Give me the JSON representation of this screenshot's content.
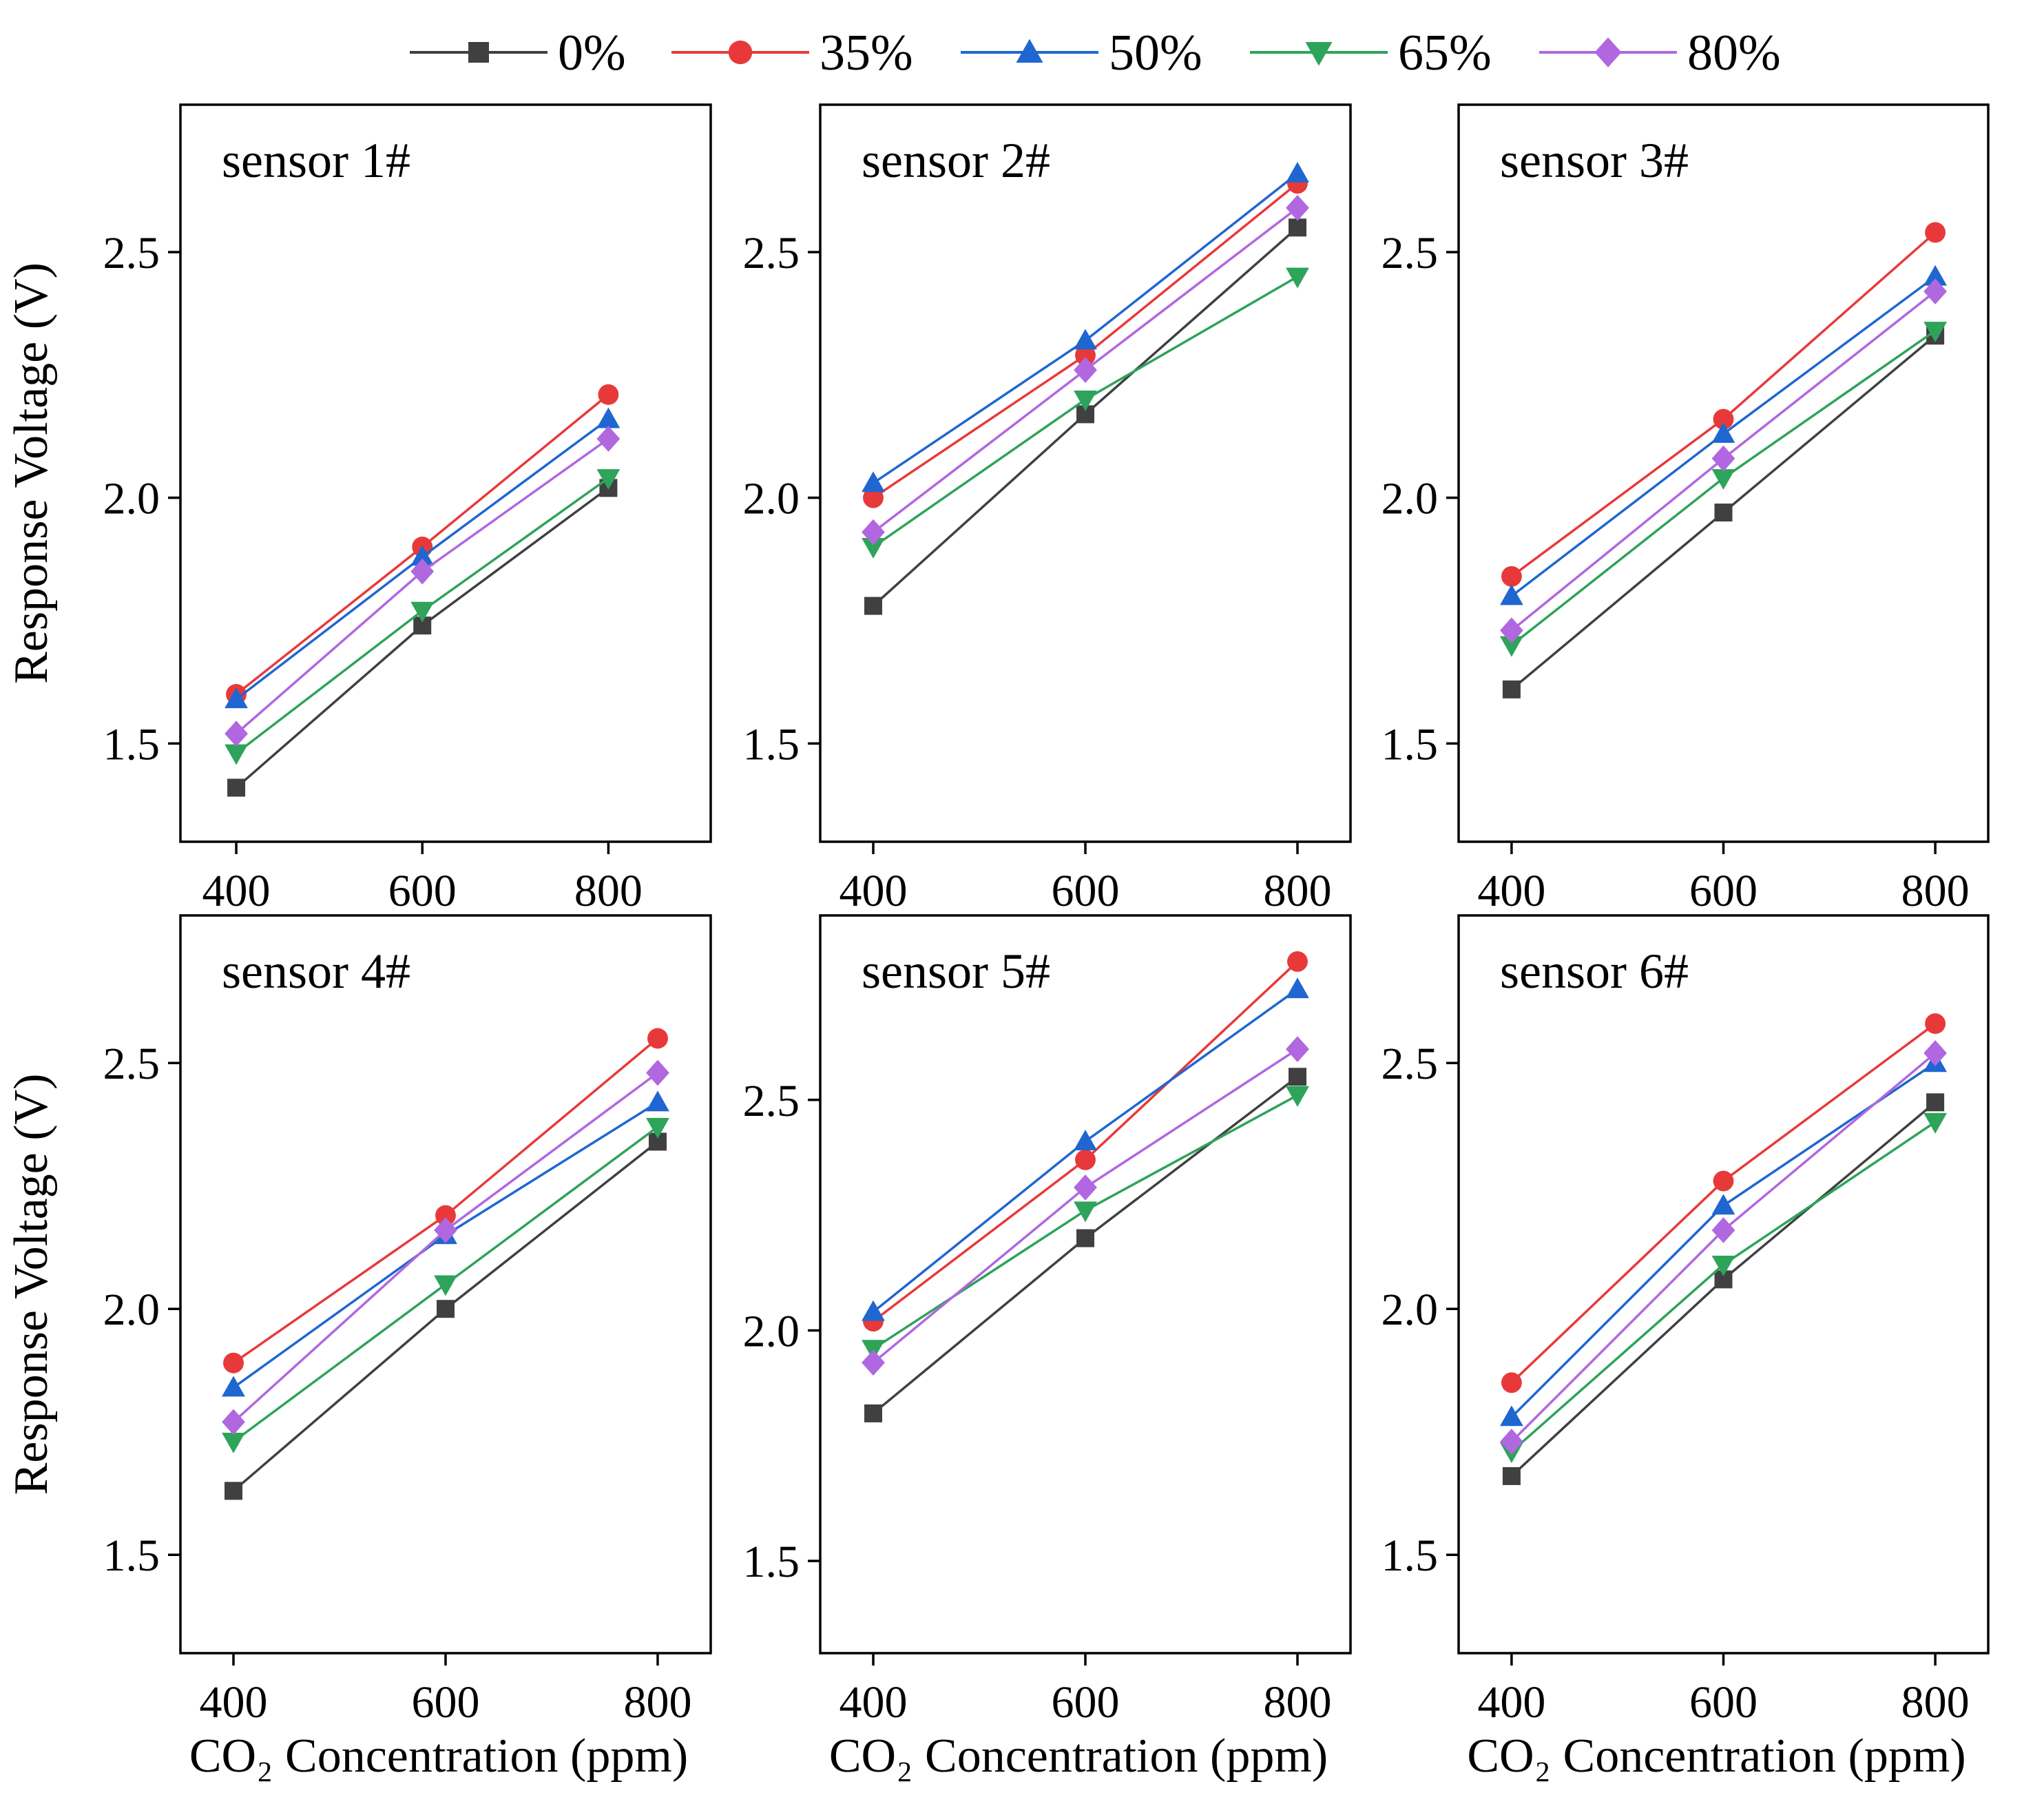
{
  "legend": {
    "entries": [
      {
        "name": "0%",
        "color": "#404040",
        "marker": "square"
      },
      {
        "name": "35%",
        "color": "#e8393a",
        "marker": "circle"
      },
      {
        "name": "50%",
        "color": "#1f66d1",
        "marker": "triangle-up"
      },
      {
        "name": "65%",
        "color": "#2ea35a",
        "marker": "triangle-down"
      },
      {
        "name": "80%",
        "color": "#b067e0",
        "marker": "diamond"
      }
    ]
  },
  "chart_data": [
    {
      "type": "line",
      "title": "sensor 1#",
      "xlabel": "",
      "ylabel": "Response Voltage (V)",
      "x": [
        400,
        600,
        800
      ],
      "xlim": [
        340,
        910
      ],
      "ylim": [
        1.3,
        2.8
      ],
      "xticks": [
        "400",
        "600",
        "800"
      ],
      "yticks": [
        "1.5",
        "2.0",
        "2.5"
      ],
      "series": [
        {
          "name": "0%",
          "values": [
            1.41,
            1.74,
            2.02
          ]
        },
        {
          "name": "35%",
          "values": [
            1.6,
            1.9,
            2.21
          ]
        },
        {
          "name": "50%",
          "values": [
            1.59,
            1.88,
            2.16
          ]
        },
        {
          "name": "65%",
          "values": [
            1.48,
            1.77,
            2.04
          ]
        },
        {
          "name": "80%",
          "values": [
            1.52,
            1.85,
            2.12
          ]
        }
      ]
    },
    {
      "type": "line",
      "title": "sensor 2#",
      "xlabel": "",
      "ylabel": "",
      "x": [
        400,
        600,
        800
      ],
      "xlim": [
        350,
        850
      ],
      "ylim": [
        1.3,
        2.8
      ],
      "xticks": [
        "400",
        "600",
        "800"
      ],
      "yticks": [
        "1.5",
        "2.0",
        "2.5"
      ],
      "series": [
        {
          "name": "0%",
          "values": [
            1.78,
            2.17,
            2.55
          ]
        },
        {
          "name": "35%",
          "values": [
            2.0,
            2.29,
            2.64
          ]
        },
        {
          "name": "50%",
          "values": [
            2.03,
            2.32,
            2.66
          ]
        },
        {
          "name": "65%",
          "values": [
            1.9,
            2.2,
            2.45
          ]
        },
        {
          "name": "80%",
          "values": [
            1.93,
            2.26,
            2.59
          ]
        }
      ]
    },
    {
      "type": "line",
      "title": "sensor 3#",
      "xlabel": "",
      "ylabel": "",
      "x": [
        400,
        600,
        800
      ],
      "xlim": [
        350,
        850
      ],
      "ylim": [
        1.3,
        2.8
      ],
      "xticks": [
        "400",
        "600",
        "800"
      ],
      "yticks": [
        "1.5",
        "2.0",
        "2.5"
      ],
      "series": [
        {
          "name": "0%",
          "values": [
            1.61,
            1.97,
            2.33
          ]
        },
        {
          "name": "35%",
          "values": [
            1.84,
            2.16,
            2.54
          ]
        },
        {
          "name": "50%",
          "values": [
            1.8,
            2.13,
            2.45
          ]
        },
        {
          "name": "65%",
          "values": [
            1.7,
            2.04,
            2.34
          ]
        },
        {
          "name": "80%",
          "values": [
            1.73,
            2.08,
            2.42
          ]
        }
      ]
    },
    {
      "type": "line",
      "title": "sensor 4#",
      "xlabel": "CO₂ Concentration (ppm)",
      "ylabel": "Response Voltage (V)",
      "x": [
        400,
        600,
        800
      ],
      "xlim": [
        350,
        850
      ],
      "ylim": [
        1.3,
        2.8
      ],
      "xticks": [
        "400",
        "600",
        "800"
      ],
      "yticks": [
        "1.5",
        "2.0",
        "2.5"
      ],
      "series": [
        {
          "name": "0%",
          "values": [
            1.63,
            2.0,
            2.34
          ]
        },
        {
          "name": "35%",
          "values": [
            1.89,
            2.19,
            2.55
          ]
        },
        {
          "name": "50%",
          "values": [
            1.84,
            2.15,
            2.42
          ]
        },
        {
          "name": "65%",
          "values": [
            1.73,
            2.05,
            2.37
          ]
        },
        {
          "name": "80%",
          "values": [
            1.77,
            2.16,
            2.48
          ]
        }
      ]
    },
    {
      "type": "line",
      "title": "sensor 5#",
      "xlabel": "CO₂ Concentration (ppm)",
      "ylabel": "",
      "x": [
        400,
        600,
        800
      ],
      "xlim": [
        350,
        850
      ],
      "ylim": [
        1.3,
        2.9
      ],
      "xticks": [
        "400",
        "600",
        "800"
      ],
      "yticks": [
        "1.5",
        "2.0",
        "2.5"
      ],
      "series": [
        {
          "name": "0%",
          "values": [
            1.82,
            2.2,
            2.55
          ]
        },
        {
          "name": "35%",
          "values": [
            2.02,
            2.37,
            2.8
          ]
        },
        {
          "name": "50%",
          "values": [
            2.04,
            2.41,
            2.74
          ]
        },
        {
          "name": "65%",
          "values": [
            1.96,
            2.26,
            2.51
          ]
        },
        {
          "name": "80%",
          "values": [
            1.93,
            2.31,
            2.61
          ]
        }
      ]
    },
    {
      "type": "line",
      "title": "sensor 6#",
      "xlabel": "CO₂ Concentration (ppm)",
      "ylabel": "",
      "x": [
        400,
        600,
        800
      ],
      "xlim": [
        350,
        850
      ],
      "ylim": [
        1.3,
        2.8
      ],
      "xticks": [
        "400",
        "600",
        "800"
      ],
      "yticks": [
        "1.5",
        "2.0",
        "2.5"
      ],
      "series": [
        {
          "name": "0%",
          "values": [
            1.66,
            2.06,
            2.42
          ]
        },
        {
          "name": "35%",
          "values": [
            1.85,
            2.26,
            2.58
          ]
        },
        {
          "name": "50%",
          "values": [
            1.78,
            2.21,
            2.5
          ]
        },
        {
          "name": "65%",
          "values": [
            1.71,
            2.09,
            2.38
          ]
        },
        {
          "name": "80%",
          "values": [
            1.73,
            2.16,
            2.52
          ]
        }
      ]
    }
  ]
}
